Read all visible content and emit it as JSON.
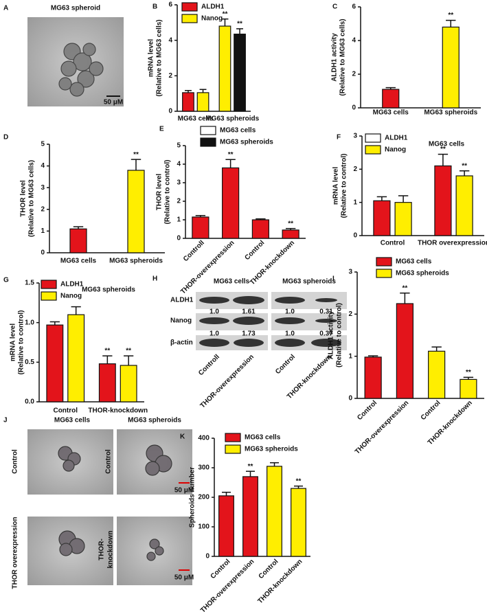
{
  "figure": {
    "panel_labels": [
      "A",
      "B",
      "C",
      "D",
      "E",
      "F",
      "G",
      "H",
      "I",
      "J",
      "K"
    ],
    "spheroid_image": {
      "title": "MG63 spheroid",
      "scale": "50 μM"
    },
    "blot": {
      "headers": [
        "MG63 cells",
        "MG63 spheroids"
      ],
      "rows": [
        "ALDH1",
        "Nanog",
        "β-actin"
      ],
      "ratios": [
        [
          "1.0",
          "1.61",
          "1.0",
          "0.31"
        ],
        [
          "1.0",
          "1.73",
          "1.0",
          "0.37"
        ]
      ],
      "lanes": [
        "Controll",
        "THOR-overexpression",
        "Control",
        "THOR-knockdown"
      ]
    },
    "images_j": {
      "columns": [
        "MG63 cells",
        "MG63 spheroids"
      ],
      "rows_left": [
        "Control",
        "THOR overexpression"
      ],
      "rows_right": [
        "Control",
        "THOR-",
        "knockdown"
      ],
      "scale": "50 μM"
    }
  },
  "chart_data": [
    {
      "type": "bar",
      "ylabel": [
        "mRNA level",
        "(Relative to MG63 cells)"
      ],
      "categories": [
        "MG63 cells",
        "MG63 spheroids"
      ],
      "series": [
        {
          "name": "ALDH1",
          "color": "#e3141b",
          "colors": [
            "#e3141b",
            "#ffee00"
          ],
          "values": [
            1.05,
            4.8
          ],
          "errors": [
            0.12,
            0.4
          ],
          "annotations": [
            null,
            "**"
          ]
        },
        {
          "name": "Nanog",
          "color": "#ffee00",
          "colors": [
            "#ffee00",
            "#111111"
          ],
          "values": [
            1.05,
            4.35
          ],
          "errors": [
            0.18,
            0.3
          ],
          "annotations": [
            null,
            "**"
          ]
        }
      ],
      "ylim": [
        0,
        6
      ],
      "yticks": [
        0,
        2,
        4,
        6
      ]
    },
    {
      "type": "bar",
      "ylabel": [
        "ALDH1 activity",
        "(Relative to MG63 cells)"
      ],
      "categories": [
        "MG63 cells",
        "MG63 spheroids"
      ],
      "series": [
        {
          "colors": [
            "#e3141b",
            "#ffee00"
          ],
          "values": [
            1.1,
            4.8
          ],
          "errors": [
            0.1,
            0.4
          ],
          "annotations": [
            null,
            "**"
          ]
        }
      ],
      "ylim": [
        0,
        6
      ],
      "yticks": [
        0,
        2,
        4,
        6
      ]
    },
    {
      "type": "bar",
      "ylabel": [
        "THOR level",
        "(Relative to MG63 cells)"
      ],
      "categories": [
        "MG63 cells",
        "MG63 spheroids"
      ],
      "series": [
        {
          "colors": [
            "#e3141b",
            "#ffee00"
          ],
          "values": [
            1.1,
            3.8
          ],
          "errors": [
            0.1,
            0.5
          ],
          "annotations": [
            null,
            "**"
          ]
        }
      ],
      "ylim": [
        0,
        5
      ],
      "yticks": [
        0,
        1,
        2,
        3,
        4,
        5
      ]
    },
    {
      "type": "bar",
      "ylabel": [
        "THOR level",
        "(Relative to control)"
      ],
      "categories": [
        "Controll",
        "THOR-overexpression",
        "Control",
        "THOR-knockdown"
      ],
      "series": [
        {
          "colors": [
            "#e3141b",
            "#e3141b",
            "#e3141b",
            "#e3141b"
          ],
          "values": [
            1.15,
            3.8,
            1.0,
            0.45
          ],
          "errors": [
            0.08,
            0.45,
            0.05,
            0.08
          ],
          "annotations": [
            null,
            "**",
            null,
            "**"
          ]
        }
      ],
      "legend": [
        {
          "name": "MG63 cells",
          "color": "#ffffff"
        },
        {
          "name": "MG63 spheroids",
          "color": "#111111"
        }
      ],
      "ylim": [
        0,
        5
      ],
      "yticks": [
        0,
        1,
        2,
        3,
        4,
        5
      ]
    },
    {
      "type": "bar",
      "title": "MG63 cells",
      "ylabel": [
        "mRNA level",
        "(Relative to control)"
      ],
      "categories": [
        "Control",
        "THOR overexpression"
      ],
      "series": [
        {
          "name": "ALDH1",
          "color": "#e3141b",
          "values": [
            1.05,
            2.1
          ],
          "errors": [
            0.12,
            0.35
          ],
          "annotations": [
            null,
            "**"
          ]
        },
        {
          "name": "Nanog",
          "color": "#ffee00",
          "values": [
            1.0,
            1.8
          ],
          "errors": [
            0.2,
            0.15
          ],
          "annotations": [
            null,
            "**"
          ]
        }
      ],
      "legend": [
        {
          "name": "ALDH1",
          "color": "#ffffff"
        },
        {
          "name": "Nanog",
          "color": "#ffee00"
        }
      ],
      "ylim": [
        0,
        3
      ],
      "yticks": [
        0,
        1,
        2,
        3
      ]
    },
    {
      "type": "bar",
      "title": "MG63 spheroids",
      "ylabel": [
        "mRNA level",
        "(Relative to control)"
      ],
      "categories": [
        "Control",
        "THOR-knockdown"
      ],
      "series": [
        {
          "name": "ALDH1",
          "color": "#e3141b",
          "values": [
            0.97,
            0.48
          ],
          "errors": [
            0.04,
            0.1
          ],
          "annotations": [
            null,
            "**"
          ]
        },
        {
          "name": "Nanog",
          "color": "#ffee00",
          "values": [
            1.1,
            0.46
          ],
          "errors": [
            0.1,
            0.12
          ],
          "annotations": [
            null,
            "**"
          ]
        }
      ],
      "ylim": [
        0,
        1.5
      ],
      "yticks": [
        {
          "value": 0,
          "label": "0.0"
        },
        0.5,
        {
          "value": 1,
          "label": "1.0"
        },
        1.5
      ]
    },
    {
      "type": "bar",
      "ylabel": [
        "ALDH1 activity",
        "(Relative to control)"
      ],
      "categories": [
        "Control",
        "THOR-overexpression",
        "Control",
        "THOR-knockdown"
      ],
      "series": [
        {
          "colors": [
            "#e3141b",
            "#e3141b",
            "#ffee00",
            "#ffee00"
          ],
          "values": [
            0.98,
            2.25,
            1.12,
            0.45
          ],
          "errors": [
            0.03,
            0.25,
            0.1,
            0.05
          ],
          "annotations": [
            null,
            "**",
            null,
            "**"
          ]
        }
      ],
      "legend": [
        {
          "name": "MG63 cells",
          "color": "#e3141b"
        },
        {
          "name": "MG63 spheroids",
          "color": "#ffee00"
        }
      ],
      "ylim": [
        0,
        3
      ],
      "yticks": [
        0,
        1,
        2,
        3
      ]
    },
    {
      "type": "bar",
      "ylabel": [
        "Spheroids number"
      ],
      "categories": [
        "Control",
        "THOR-overexpression",
        "Control",
        "THOR-knockdown"
      ],
      "series": [
        {
          "colors": [
            "#e3141b",
            "#e3141b",
            "#ffee00",
            "#ffee00"
          ],
          "values": [
            205,
            270,
            305,
            230
          ],
          "errors": [
            12,
            18,
            12,
            8
          ],
          "annotations": [
            null,
            "**",
            null,
            "**"
          ]
        }
      ],
      "legend": [
        {
          "name": "MG63 cells",
          "color": "#e3141b"
        },
        {
          "name": "MG63 spheroids",
          "color": "#ffee00"
        }
      ],
      "ylim": [
        0,
        400
      ],
      "yticks": [
        0,
        100,
        200,
        300,
        400
      ]
    }
  ]
}
